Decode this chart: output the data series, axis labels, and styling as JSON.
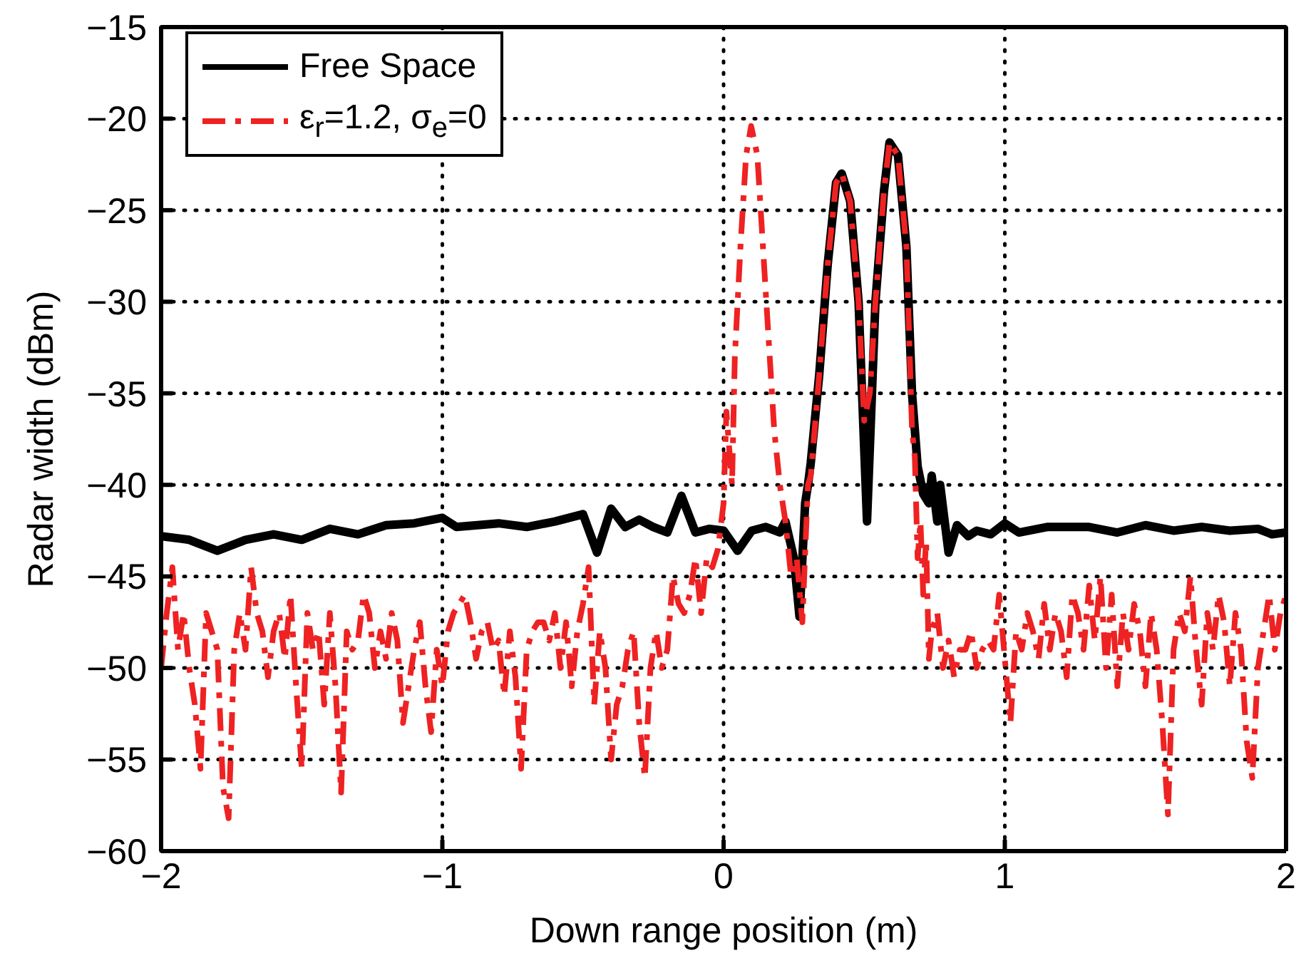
{
  "chart_data": {
    "type": "line",
    "xlabel": "Down range position (m)",
    "ylabel": "Radar width (dBm)",
    "xlim": [
      -2,
      2
    ],
    "xticks": [
      {
        "value": -2,
        "label": "−2"
      },
      {
        "value": -1,
        "label": "−1"
      },
      0,
      1,
      2
    ],
    "ylim": [
      -60,
      -15
    ],
    "yticks": [
      {
        "value": -60,
        "label": "−60"
      },
      {
        "value": -55,
        "label": "−55"
      },
      {
        "value": -50,
        "label": "−50"
      },
      {
        "value": -45,
        "label": "−45"
      },
      {
        "value": -40,
        "label": "−40"
      },
      {
        "value": -35,
        "label": "−35"
      },
      {
        "value": -30,
        "label": "−30"
      },
      {
        "value": -25,
        "label": "−25"
      },
      {
        "value": -20,
        "label": "−20"
      },
      {
        "value": -15,
        "label": "−15"
      }
    ],
    "grid": true,
    "legend": "top left",
    "marker": "none",
    "series": [
      {
        "name": "Free Space",
        "color": "#000000",
        "line_style": "solid",
        "x": [
          -2,
          -1.9,
          -1.8,
          -1.7,
          -1.6,
          -1.5,
          -1.4,
          -1.3,
          -1.2,
          -1.1,
          -1.0,
          -0.95,
          -0.8,
          -0.7,
          -0.6,
          -0.5,
          -0.45,
          -0.4,
          -0.35,
          -0.3,
          -0.25,
          -0.2,
          -0.15,
          -0.1,
          -0.05,
          0,
          0.05,
          0.1,
          0.15,
          0.2,
          0.22,
          0.25,
          0.27,
          0.29,
          0.3,
          0.31,
          0.34,
          0.37,
          0.4,
          0.42,
          0.45,
          0.48,
          0.5,
          0.51,
          0.52,
          0.54,
          0.57,
          0.59,
          0.62,
          0.65,
          0.67,
          0.69,
          0.71,
          0.73,
          0.74,
          0.76,
          0.77,
          0.8,
          0.83,
          0.87,
          0.9,
          0.95,
          1.0,
          1.05,
          1.15,
          1.3,
          1.4,
          1.5,
          1.6,
          1.7,
          1.8,
          1.9,
          1.95,
          2
        ],
        "values": [
          -42.8,
          -43,
          -43.6,
          -43,
          -42.7,
          -43,
          -42.4,
          -42.7,
          -42.2,
          -42.1,
          -41.8,
          -42.3,
          -42.1,
          -42.3,
          -42,
          -41.6,
          -43.7,
          -41.3,
          -42.3,
          -41.9,
          -42.3,
          -42.6,
          -40.6,
          -42.6,
          -42.4,
          -42.5,
          -43.6,
          -42.5,
          -42.3,
          -42.6,
          -42,
          -44,
          -47.2,
          -41,
          -40,
          -38.8,
          -34,
          -28,
          -23.5,
          -23,
          -24.5,
          -30,
          -38,
          -42,
          -38,
          -30,
          -24,
          -21.3,
          -22,
          -27,
          -35,
          -39,
          -40.5,
          -41,
          -39.5,
          -42,
          -40,
          -43.7,
          -42.2,
          -42.8,
          -42.5,
          -42.7,
          -42.1,
          -42.6,
          -42.3,
          -42.3,
          -42.6,
          -42.2,
          -42.5,
          -42.3,
          -42.5,
          -42.4,
          -42.7,
          -42.6
        ]
      },
      {
        "name": "ε$_{r}$=1.2, σ$_{e}$=0",
        "color": "#ee2222",
        "line_style": "dashed",
        "x": [
          -2,
          -1.98,
          -1.96,
          -1.94,
          -1.92,
          -1.9,
          -1.88,
          -1.86,
          -1.84,
          -1.82,
          -1.8,
          -1.78,
          -1.76,
          -1.74,
          -1.72,
          -1.7,
          -1.68,
          -1.66,
          -1.64,
          -1.62,
          -1.6,
          -1.58,
          -1.56,
          -1.54,
          -1.52,
          -1.5,
          -1.48,
          -1.46,
          -1.44,
          -1.42,
          -1.4,
          -1.38,
          -1.36,
          -1.34,
          -1.32,
          -1.3,
          -1.28,
          -1.26,
          -1.24,
          -1.22,
          -1.2,
          -1.18,
          -1.16,
          -1.14,
          -1.12,
          -1.1,
          -1.08,
          -1.06,
          -1.04,
          -1.02,
          -1.0,
          -0.98,
          -0.96,
          -0.94,
          -0.92,
          -0.9,
          -0.88,
          -0.86,
          -0.84,
          -0.82,
          -0.8,
          -0.78,
          -0.76,
          -0.74,
          -0.72,
          -0.7,
          -0.68,
          -0.66,
          -0.64,
          -0.62,
          -0.6,
          -0.58,
          -0.56,
          -0.54,
          -0.52,
          -0.5,
          -0.48,
          -0.46,
          -0.44,
          -0.42,
          -0.4,
          -0.38,
          -0.36,
          -0.34,
          -0.32,
          -0.3,
          -0.28,
          -0.26,
          -0.24,
          -0.22,
          -0.2,
          -0.18,
          -0.16,
          -0.14,
          -0.12,
          -0.1,
          -0.08,
          -0.06,
          -0.04,
          -0.02,
          0,
          0.01,
          0.02,
          0.03,
          0.04,
          0.06,
          0.08,
          0.098,
          0.12,
          0.14,
          0.16,
          0.18,
          0.2,
          0.22,
          0.24,
          0.26,
          0.28,
          0.3,
          0.31,
          0.34,
          0.37,
          0.4,
          0.42,
          0.45,
          0.48,
          0.5,
          0.52,
          0.54,
          0.57,
          0.59,
          0.62,
          0.65,
          0.67,
          0.68,
          0.69,
          0.7,
          0.71,
          0.72,
          0.73,
          0.74,
          0.76,
          0.78,
          0.8,
          0.82,
          0.84,
          0.86,
          0.88,
          0.9,
          0.92,
          0.94,
          0.96,
          0.98,
          1.0,
          1.02,
          1.04,
          1.06,
          1.08,
          1.1,
          1.12,
          1.14,
          1.16,
          1.18,
          1.2,
          1.22,
          1.24,
          1.26,
          1.28,
          1.3,
          1.32,
          1.34,
          1.36,
          1.38,
          1.4,
          1.42,
          1.44,
          1.46,
          1.48,
          1.5,
          1.52,
          1.54,
          1.56,
          1.58,
          1.6,
          1.62,
          1.64,
          1.66,
          1.68,
          1.7,
          1.72,
          1.74,
          1.76,
          1.78,
          1.8,
          1.82,
          1.84,
          1.86,
          1.88,
          1.9,
          1.92,
          1.94,
          1.96,
          1.98,
          2.0
        ],
        "values": [
          -50,
          -47,
          -44.5,
          -49,
          -47,
          -50,
          -52,
          -55.5,
          -47,
          -48,
          -49,
          -56.5,
          -58.2,
          -49,
          -47,
          -49,
          -44.5,
          -47,
          -48,
          -50.5,
          -48,
          -47,
          -49.5,
          -46,
          -51,
          -55.5,
          -47,
          -49,
          -48,
          -52,
          -47,
          -51,
          -56.8,
          -48,
          -49,
          -48.5,
          -46,
          -47,
          -50,
          -48,
          -49.5,
          -47,
          -48.5,
          -53,
          -51,
          -49,
          -47.5,
          -51,
          -53.5,
          -49,
          -51,
          -48,
          -47,
          -46.5,
          -46,
          -47.5,
          -49.5,
          -48,
          -47.5,
          -49,
          -48.5,
          -51.5,
          -48,
          -50.5,
          -55.5,
          -49,
          -48,
          -47.5,
          -47.5,
          -48.5,
          -47,
          -50,
          -47.5,
          -51,
          -48,
          -46.5,
          -44.5,
          -52,
          -48,
          -50,
          -55,
          -52,
          -51,
          -49,
          -48,
          -53,
          -56,
          -50,
          -48,
          -50,
          -49,
          -45,
          -46.5,
          -47,
          -46,
          -44,
          -47,
          -44,
          -44.5,
          -43.5,
          -41,
          -36,
          -38,
          -40,
          -33,
          -27,
          -22,
          -20.4,
          -22,
          -27,
          -32,
          -37,
          -40,
          -42,
          -45,
          -44,
          -47.5,
          -40,
          -39.5,
          -34,
          -28,
          -23.5,
          -23,
          -24.5,
          -30,
          -36.5,
          -35,
          -30,
          -24,
          -21.3,
          -22,
          -27,
          -37,
          -38.5,
          -44,
          -42,
          -46,
          -43,
          -49.5,
          -48,
          -47,
          -50,
          -48.5,
          -50.5,
          -49,
          -49,
          -48,
          -50,
          -49,
          -48.5,
          -49,
          -46,
          -49.5,
          -53,
          -48,
          -49,
          -47,
          -48,
          -49.5,
          -46.5,
          -49,
          -47,
          -48,
          -50.5,
          -46,
          -47,
          -49,
          -45.5,
          -48.5,
          -45,
          -50,
          -46,
          -51,
          -47,
          -49,
          -46.5,
          -48,
          -51,
          -47,
          -49,
          -53,
          -58,
          -49,
          -47,
          -48,
          -45,
          -49,
          -52,
          -47,
          -49,
          -46,
          -47.5,
          -51,
          -47,
          -49,
          -54,
          -56,
          -50,
          -48,
          -46,
          -49,
          -47,
          -46
        ]
      }
    ]
  }
}
